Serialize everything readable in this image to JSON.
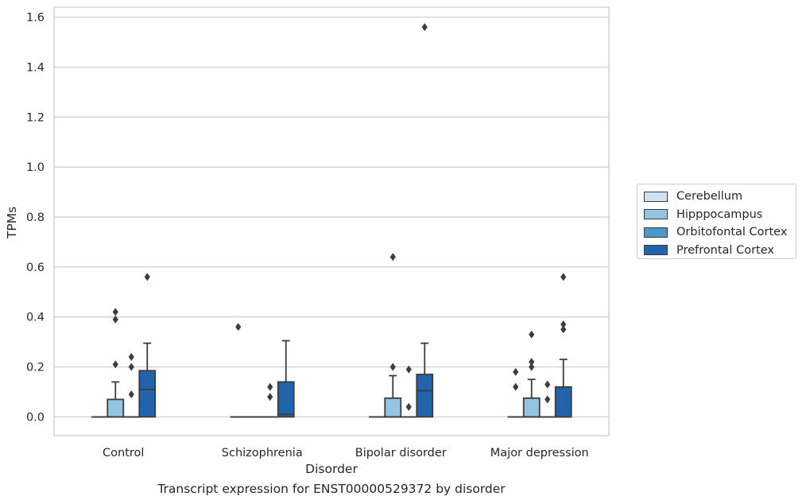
{
  "chart_data": {
    "type": "box",
    "xlabel": "Disorder",
    "ylabel": "TPMs",
    "ylim": [
      -0.075,
      1.64
    ],
    "yticks": [
      0.0,
      0.2,
      0.4,
      0.6,
      0.8,
      1.0,
      1.2,
      1.4,
      1.6
    ],
    "ytick_labels": [
      "0.0",
      "0.2",
      "0.4",
      "0.6",
      "0.8",
      "1.0",
      "1.2",
      "1.4",
      "1.6"
    ],
    "categories": [
      "Control",
      "Schizophrenia",
      "Bipolar disorder",
      "Major depression"
    ],
    "grid": "horizontal",
    "legend_position": "right-outside",
    "series": [
      {
        "name": "Cerebellum",
        "color": "#d0e1f2",
        "boxes": [
          {
            "q1": 0.0,
            "median": 0.0,
            "q3": 0.0,
            "whisker_low": 0.0,
            "whisker_high": 0.0,
            "outliers": []
          },
          {
            "q1": 0.0,
            "median": 0.0,
            "q3": 0.0,
            "whisker_low": 0.0,
            "whisker_high": 0.0,
            "outliers": [
              0.36
            ]
          },
          {
            "q1": 0.0,
            "median": 0.0,
            "q3": 0.0,
            "whisker_low": 0.0,
            "whisker_high": 0.0,
            "outliers": []
          },
          {
            "q1": 0.0,
            "median": 0.0,
            "q3": 0.0,
            "whisker_low": 0.0,
            "whisker_high": 0.0,
            "outliers": [
              0.12,
              0.18
            ]
          }
        ]
      },
      {
        "name": "Hipppocampus",
        "color": "#94c4df",
        "boxes": [
          {
            "q1": 0.0,
            "median": 0.0,
            "q3": 0.07,
            "whisker_low": 0.0,
            "whisker_high": 0.14,
            "outliers": [
              0.21,
              0.39,
              0.42
            ]
          },
          {
            "q1": 0.0,
            "median": 0.0,
            "q3": 0.0,
            "whisker_low": 0.0,
            "whisker_high": 0.0,
            "outliers": []
          },
          {
            "q1": 0.0,
            "median": 0.0,
            "q3": 0.075,
            "whisker_low": 0.0,
            "whisker_high": 0.165,
            "outliers": [
              0.2,
              0.64
            ]
          },
          {
            "q1": 0.0,
            "median": 0.0,
            "q3": 0.075,
            "whisker_low": 0.0,
            "whisker_high": 0.15,
            "outliers": [
              0.2,
              0.22,
              0.33
            ]
          }
        ]
      },
      {
        "name": "Orbitofontal Cortex",
        "color": "#4a98c9",
        "boxes": [
          {
            "q1": 0.0,
            "median": 0.0,
            "q3": 0.0,
            "whisker_low": 0.0,
            "whisker_high": 0.0,
            "outliers": [
              0.09,
              0.2,
              0.24
            ]
          },
          {
            "q1": 0.0,
            "median": 0.0,
            "q3": 0.0,
            "whisker_low": 0.0,
            "whisker_high": 0.0,
            "outliers": [
              0.08,
              0.12
            ]
          },
          {
            "q1": 0.0,
            "median": 0.0,
            "q3": 0.0,
            "whisker_low": 0.0,
            "whisker_high": 0.0,
            "outliers": [
              0.04,
              0.19
            ]
          },
          {
            "q1": 0.0,
            "median": 0.0,
            "q3": 0.0,
            "whisker_low": 0.0,
            "whisker_high": 0.0,
            "outliers": [
              0.07,
              0.13
            ]
          }
        ]
      },
      {
        "name": "Prefrontal Cortex",
        "color": "#2164ab",
        "boxes": [
          {
            "q1": 0.0,
            "median": 0.11,
            "q3": 0.185,
            "whisker_low": 0.0,
            "whisker_high": 0.295,
            "outliers": [
              0.56
            ]
          },
          {
            "q1": 0.0,
            "median": 0.01,
            "q3": 0.14,
            "whisker_low": 0.0,
            "whisker_high": 0.305,
            "outliers": []
          },
          {
            "q1": 0.0,
            "median": 0.105,
            "q3": 0.17,
            "whisker_low": 0.0,
            "whisker_high": 0.295,
            "outliers": [
              1.56
            ]
          },
          {
            "q1": 0.0,
            "median": 0.0,
            "q3": 0.12,
            "whisker_low": 0.0,
            "whisker_high": 0.23,
            "outliers": [
              0.35,
              0.37,
              0.56
            ]
          }
        ]
      }
    ]
  },
  "caption": "Transcript expression for ENST00000529372 by disorder"
}
